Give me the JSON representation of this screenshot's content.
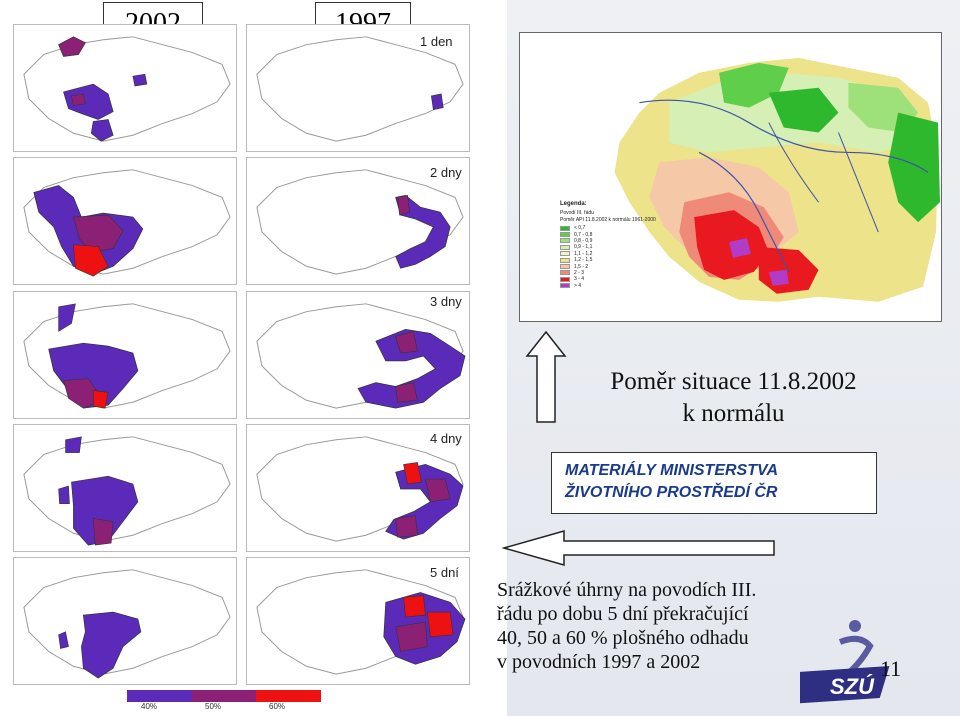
{
  "years": {
    "left": "2002",
    "right": "1997"
  },
  "days": [
    "1 den",
    "2 dny",
    "3 dny",
    "4 dny",
    "5 dní"
  ],
  "colors": {
    "low": "#5b2ab8",
    "mid": "#8b2075",
    "high": "#ee1111",
    "accent_blue": "#1a3a8a"
  },
  "rain_map": {
    "legend_title": "Legenda:",
    "legend_subtitle_1": "Povodí III. řádu",
    "legend_subtitle_2": "Poměr API 11.8.2002 k normálu 1961-2000",
    "legend_items": [
      {
        "label": "< 0,7",
        "color": "#2eb82e"
      },
      {
        "label": "0,7 - 0,8",
        "color": "#5fce4a"
      },
      {
        "label": "0,8 - 0,9",
        "color": "#9ee07a"
      },
      {
        "label": "0,9 - 1,1",
        "color": "#d6efb5"
      },
      {
        "label": "1,1 - 1,2",
        "color": "#f2f2c8"
      },
      {
        "label": "1,2 - 1,5",
        "color": "#ece38a"
      },
      {
        "label": "1,5 - 2",
        "color": "#f5c8a8"
      },
      {
        "label": "2 - 3",
        "color": "#f08a78"
      },
      {
        "label": "3 - 4",
        "color": "#e8191f"
      },
      {
        "label": "> 4",
        "color": "#b03cc8"
      }
    ]
  },
  "ratio_title_line1": "Poměr situace 11.8.2002",
  "ratio_title_line2": "k normálu",
  "ministry_line1": "MATERIÁLY MINISTERSTVA",
  "ministry_line2": "ŽIVOTNÍHO PROSTŘEDÍ ČR",
  "caption_line1": "Srážkové úhrny na povodích III.",
  "caption_line2": "řádu po dobu 5 dní překračující",
  "caption_line3": "40, 50 a 60 % plošného odhadu",
  "caption_line4": "v povodních 1997 a 2002",
  "page_number": "11",
  "bottom_legend": [
    "40%",
    "50%",
    "60%"
  ]
}
